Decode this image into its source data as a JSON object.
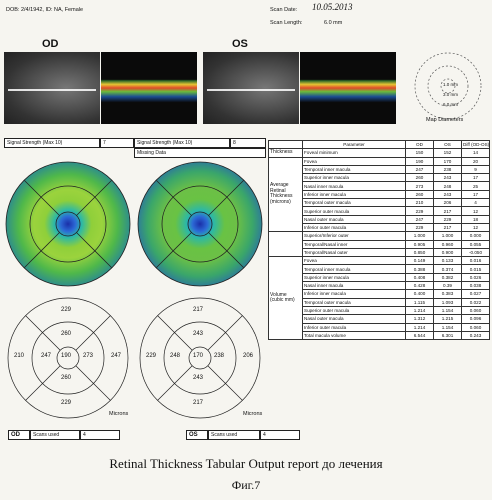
{
  "header": {
    "patient": "DOB: 2/4/1942, ID: NA, Female",
    "scan_date_label": "Scan Date:",
    "scan_date": "10.05.2013",
    "scan_length_label": "Scan Length:",
    "scan_length": "6.0 mm"
  },
  "eyes": {
    "od": "OD",
    "os": "OS"
  },
  "map_diameters": {
    "label": "Map Diameters",
    "d1": "1.0 mm",
    "d2": "3.0 mm",
    "d3": "6.0 mm"
  },
  "signal": {
    "od_label": "Signal Strength (Max 10)",
    "od_value": "7",
    "os_label": "Signal Strength (Max 10)",
    "os_value": "8",
    "missing": "Missing Data"
  },
  "table": {
    "headers": {
      "parameter": "Parameter",
      "od": "OD",
      "os": "OS",
      "diff": "Diff (OD-OS)"
    },
    "thickness_group": "Thickness",
    "average_group": "Average Retinal Thickness (microns)",
    "volume_group": "Volume (cubic mm)",
    "thickness_rows": [
      {
        "p": "Foveal minimum",
        "od": "150",
        "os": "152",
        "diff": "14"
      }
    ],
    "average_rows": [
      {
        "p": "Fovea",
        "od": "190",
        "os": "170",
        "diff": "20"
      },
      {
        "p": "Temporal inner macula",
        "od": "247",
        "os": "238",
        "diff": "9"
      },
      {
        "p": "Superior inner macula",
        "od": "260",
        "os": "243",
        "diff": "17"
      },
      {
        "p": "Nasal inner macula",
        "od": "273",
        "os": "248",
        "diff": "25"
      },
      {
        "p": "Inferior inner macula",
        "od": "260",
        "os": "243",
        "diff": "17"
      },
      {
        "p": "Temporal outer macula",
        "od": "210",
        "os": "206",
        "diff": "4"
      },
      {
        "p": "Superior outer macula",
        "od": "229",
        "os": "217",
        "diff": "12"
      },
      {
        "p": "Nasal outer macula",
        "od": "247",
        "os": "229",
        "diff": "18"
      },
      {
        "p": "Inferior outer macula",
        "od": "229",
        "os": "217",
        "diff": "12"
      }
    ],
    "ratio_rows": [
      {
        "p": "Superior/Inferior outer",
        "od": "1.000",
        "os": "1.000",
        "diff": "0.000"
      },
      {
        "p": "Temporal/Nasal inner",
        "od": "0.905",
        "os": "0.960",
        "diff": "0.055"
      },
      {
        "p": "Temporal/Nasal outer",
        "od": "0.850",
        "os": "0.900",
        "diff": "-0.050"
      }
    ],
    "volume_rows": [
      {
        "p": "Fovea",
        "od": "0.149",
        "os": "0.133",
        "diff": "0.016"
      },
      {
        "p": "Temporal inner macula",
        "od": "0.388",
        "os": "0.374",
        "diff": "0.015"
      },
      {
        "p": "Superior inner macula",
        "od": "0.408",
        "os": "0.382",
        "diff": "0.026"
      },
      {
        "p": "Nasal inner macula",
        "od": "0.428",
        "os": "0.39",
        "diff": "0.038"
      },
      {
        "p": "Inferior inner macula",
        "od": "0.400",
        "os": "0.383",
        "diff": "0.027"
      },
      {
        "p": "Temporal outer macula",
        "od": "1.115",
        "os": "1.093",
        "diff": "0.022"
      },
      {
        "p": "Superior outer macula",
        "od": "1.214",
        "os": "1.154",
        "diff": "0.060"
      },
      {
        "p": "Nasal outer macula",
        "od": "1.312",
        "os": "1.215",
        "diff": "0.096"
      },
      {
        "p": "Inferior outer macula",
        "od": "1.214",
        "os": "1.154",
        "diff": "0.060"
      },
      {
        "p": "Total macula volume",
        "od": "6.544",
        "os": "6.301",
        "diff": "0.243"
      }
    ]
  },
  "grid_od": {
    "top": "229",
    "sup_inner": "260",
    "temp_outer": "210",
    "temp_inner": "247",
    "center": "190",
    "nasal_inner": "273",
    "nasal_outer": "247",
    "inf_inner": "260",
    "bottom": "229"
  },
  "grid_os": {
    "top": "217",
    "sup_inner": "243",
    "temp_outer": "229",
    "temp_inner": "248",
    "center": "170",
    "nasal_inner": "238",
    "nasal_outer": "206",
    "inf_inner": "243",
    "bottom": "217"
  },
  "microns": "Microns",
  "scans": {
    "od_label": "OD",
    "os_label": "OS",
    "used_label": "Scans used",
    "od_used": "4",
    "os_used": "4"
  },
  "caption": "Retinal Thickness Tabular Output report до лечения",
  "fig": "Фиг.7"
}
